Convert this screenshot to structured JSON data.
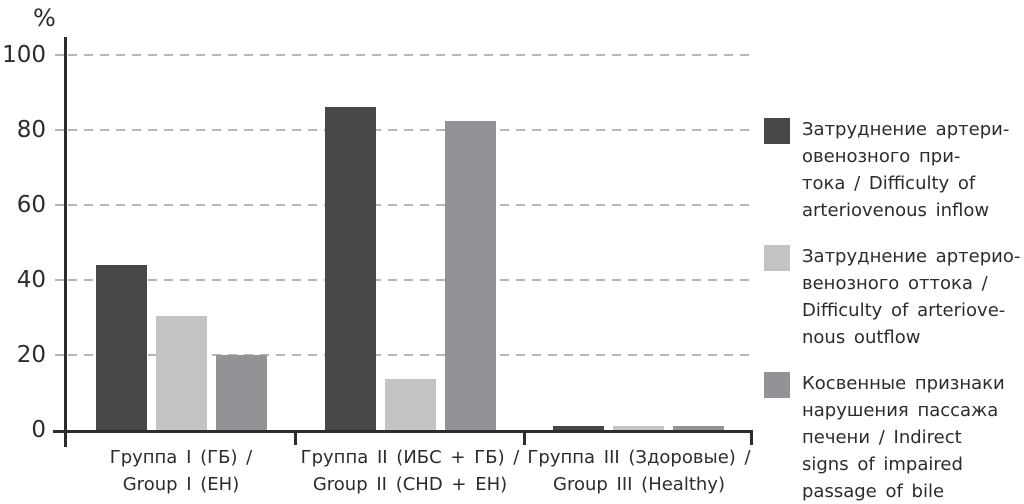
{
  "chart": {
    "ylabel": "%"
  },
  "chart_data": {
    "type": "bar",
    "title": "",
    "xlabel": "",
    "ylabel": "%",
    "ylim": [
      0,
      100
    ],
    "yticks": [
      0,
      20,
      40,
      60,
      80,
      100
    ],
    "grid": "horizontal-dashed",
    "legend_position": "right",
    "categories": [
      "Группа I (ГБ) / Group I (EH)",
      "Группа II (ИБС + ГБ) / Group II (CHD + EH)",
      "Группа III (Здоровые) / Group III (Healthy)"
    ],
    "category_lines": [
      [
        "Группа I (ГБ) /",
        "Group I (EH)"
      ],
      [
        "Группа II (ИБС + ГБ) /",
        "Group II (CHD + EH)"
      ],
      [
        "Группа III (Здоровые) /",
        "Group III (Healthy)"
      ]
    ],
    "series": [
      {
        "name": "Затруднение артериовенозного притока / Difficulty of arteriovenous inflow",
        "color": "#48484a",
        "values": [
          44,
          86,
          1
        ]
      },
      {
        "name": "Затруднение артериовенозного оттока / Difficulty of arteriovenous outflow",
        "color": "#c2c3c5",
        "values": [
          30.5,
          13.5,
          1
        ]
      },
      {
        "name": "Косвенные признаки нарушения пассажа печени / Indirect signs of impaired passage of bile",
        "color": "#919396",
        "values": [
          20,
          82.5,
          1
        ]
      }
    ],
    "legend_lines": [
      [
        "Затруднение артери-",
        "овенозного при-",
        "тока / Difficulty of",
        "arteriovenous inflow"
      ],
      [
        "Затруднение артерио-",
        "венозного оттока /",
        "Difficulty of arteriove-",
        "nous outflow"
      ],
      [
        "Косвенные признаки",
        "нарушения пассажа",
        "печени / Indirect",
        "signs of impaired",
        "passage of bile"
      ]
    ],
    "colors": {
      "axis": "#2c2c2e",
      "grid": "#b5b5b5",
      "text": "#303034"
    }
  }
}
